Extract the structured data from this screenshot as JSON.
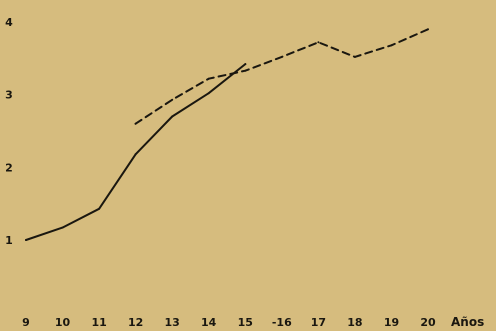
{
  "chart_data": {
    "type": "line",
    "title": "",
    "xlabel": "Años",
    "ylabel": "",
    "x_ticks": [
      "9",
      "10",
      "11",
      "12",
      "13",
      "14",
      "15",
      "-16",
      "17",
      "18",
      "19",
      "20"
    ],
    "y_ticks": [
      "1",
      "2",
      "3",
      "4"
    ],
    "xlim": [
      9,
      20
    ],
    "ylim": [
      1,
      4
    ],
    "grid": false,
    "series": [
      {
        "style": "solid",
        "color": "#1a1710",
        "points": [
          {
            "x": 9,
            "y": 1.0
          },
          {
            "x": 10,
            "y": 1.17
          },
          {
            "x": 11,
            "y": 1.43
          },
          {
            "x": 12,
            "y": 2.18
          },
          {
            "x": 13,
            "y": 2.7
          },
          {
            "x": 14,
            "y": 3.02
          },
          {
            "x": 15,
            "y": 3.42
          }
        ]
      },
      {
        "style": "dashed",
        "color": "#1a1710",
        "points": [
          {
            "x": 12,
            "y": 2.6
          },
          {
            "x": 13,
            "y": 2.93
          },
          {
            "x": 14,
            "y": 3.22
          },
          {
            "x": 15,
            "y": 3.33
          },
          {
            "x": 16,
            "y": 3.52
          },
          {
            "x": 17,
            "y": 3.72
          },
          {
            "x": 18,
            "y": 3.52
          },
          {
            "x": 19,
            "y": 3.68
          },
          {
            "x": 20,
            "y": 3.9
          }
        ]
      }
    ]
  }
}
